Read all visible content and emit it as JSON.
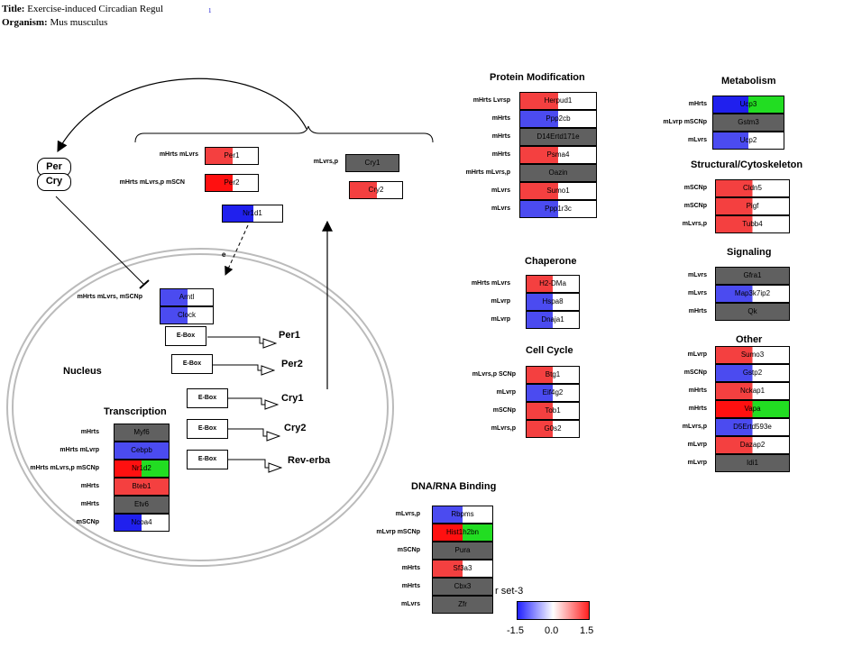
{
  "header": {
    "title_label": "Title:",
    "title_value": "Exercise-induced Circadian Regul",
    "organism_label": "Organism:",
    "organism_value": "Mus musculus",
    "link_marker": "1"
  },
  "colors": {
    "red": "#f44040",
    "strong_red": "#ff1010",
    "blue": "#4b4bf0",
    "strong_blue": "#2020ee",
    "green": "#22dd22",
    "gray": "#606060",
    "white": "#ffffff"
  },
  "pathway": {
    "per_label": "Per",
    "cry_label": "Cry",
    "nucleus_label": "Nucleus",
    "per1": {
      "label": "mHrts mLvrs",
      "gene": "Per1"
    },
    "per2": {
      "label": "mHrts mLvrs,p  mSCN",
      "gene": "Per2"
    },
    "cry1": {
      "label": "mLvrs,p",
      "gene": "Cry1"
    },
    "cry2": {
      "label": "",
      "gene": "Cry2"
    },
    "nr1d1": {
      "gene": "Nr1d1"
    },
    "arntl": {
      "label": "mHrts mLvrs, mSCNp",
      "gene": "Arntl"
    },
    "clock": {
      "gene": "Clock"
    },
    "ebox_label": "E-Box",
    "targets": [
      "Per1",
      "Per2",
      "Cry1",
      "Cry2",
      "Rev-erba"
    ],
    "inhibition_mark": "e"
  },
  "sections": {
    "transcription": {
      "title": "Transcription",
      "rows": [
        {
          "label": "mHrts",
          "gene": "Myf6"
        },
        {
          "label": "mHrts mLvrp",
          "gene": "Cebpb"
        },
        {
          "label": "mHrts mLvrs,p mSCNp",
          "gene": "Nr1d2"
        },
        {
          "label": "mHrts",
          "gene": "Bteb1"
        },
        {
          "label": "mHrts",
          "gene": "Etv6"
        },
        {
          "label": "mSCNp",
          "gene": "Ncoa4"
        }
      ]
    },
    "protein_modification": {
      "title": "Protein Modification",
      "rows": [
        {
          "label": "mHrts Lvrsp",
          "gene": "Herpud1"
        },
        {
          "label": "mHrts",
          "gene": "Ppp2cb"
        },
        {
          "label": "mHrts",
          "gene": "D14Ertd171e"
        },
        {
          "label": "mHrts",
          "gene": "Psma4"
        },
        {
          "label": "mHrts mLvrs,p",
          "gene": "Oazin"
        },
        {
          "label": "mLvrs",
          "gene": "Sumo1"
        },
        {
          "label": "mLvrs",
          "gene": "Ppp1r3c"
        }
      ]
    },
    "chaperone": {
      "title": "Chaperone",
      "rows": [
        {
          "label": "mHrts mLvrs",
          "gene": "H2-DMa"
        },
        {
          "label": "mLvrp",
          "gene": "Hspa8"
        },
        {
          "label": "mLvrp",
          "gene": "Dnaja1"
        }
      ]
    },
    "cell_cycle": {
      "title": "Cell Cycle",
      "rows": [
        {
          "label": "mLvrs,p SCNp",
          "gene": "Btg1"
        },
        {
          "label": "mLvrp",
          "gene": "Eif4g2"
        },
        {
          "label": "mSCNp",
          "gene": "Tob1"
        },
        {
          "label": "mLvrs,p",
          "gene": "G0s2"
        }
      ]
    },
    "dna_rna": {
      "title": "DNA/RNA Binding",
      "rows": [
        {
          "label": "mLvrs,p",
          "gene": "Rbpms"
        },
        {
          "label": "mLvrp mSCNp",
          "gene": "Hist1h2bn"
        },
        {
          "label": "mSCNp",
          "gene": "Pura"
        },
        {
          "label": "mHrts",
          "gene": "Sf3a3"
        },
        {
          "label": "mHrts",
          "gene": "Cbx3"
        },
        {
          "label": "mLvrs",
          "gene": "Zfr"
        }
      ]
    },
    "metabolism": {
      "title": "Metabolism",
      "rows": [
        {
          "label": "mHrts",
          "gene": "Ucp3"
        },
        {
          "label": "mLvrp mSCNp",
          "gene": "Gstm3"
        },
        {
          "label": "mLvrs",
          "gene": "Ucp2"
        }
      ]
    },
    "structural": {
      "title": "Structural/Cytoskeleton",
      "rows": [
        {
          "label": "mSCNp",
          "gene": "Cldn5"
        },
        {
          "label": "mSCNp",
          "gene": "Pigf"
        },
        {
          "label": "mLvrs,p",
          "gene": "Tubb4"
        }
      ]
    },
    "signaling": {
      "title": "Signaling",
      "rows": [
        {
          "label": "mLvrs",
          "gene": "Gfra1"
        },
        {
          "label": "mLvrs",
          "gene": "Map3k7ip2"
        },
        {
          "label": "mHrts",
          "gene": "Qk"
        }
      ]
    },
    "other": {
      "title": "Other",
      "rows": [
        {
          "label": "mLvrp",
          "gene": "Sumo3"
        },
        {
          "label": "mSCNp",
          "gene": "Gstp2"
        },
        {
          "label": "mHrts",
          "gene": "Nckap1"
        },
        {
          "label": "mHrts",
          "gene": "Vapa"
        },
        {
          "label": "mLvrs,p",
          "gene": "D5Ertd593e"
        },
        {
          "label": "mLvrp",
          "gene": "Dazap2"
        },
        {
          "label": "mLvrp",
          "gene": "Idi1"
        }
      ]
    }
  },
  "legend": {
    "caption": "set-3",
    "prefix": "r",
    "min_label": "-1.5",
    "mid_label": "0.0",
    "max_label": "1.5"
  }
}
